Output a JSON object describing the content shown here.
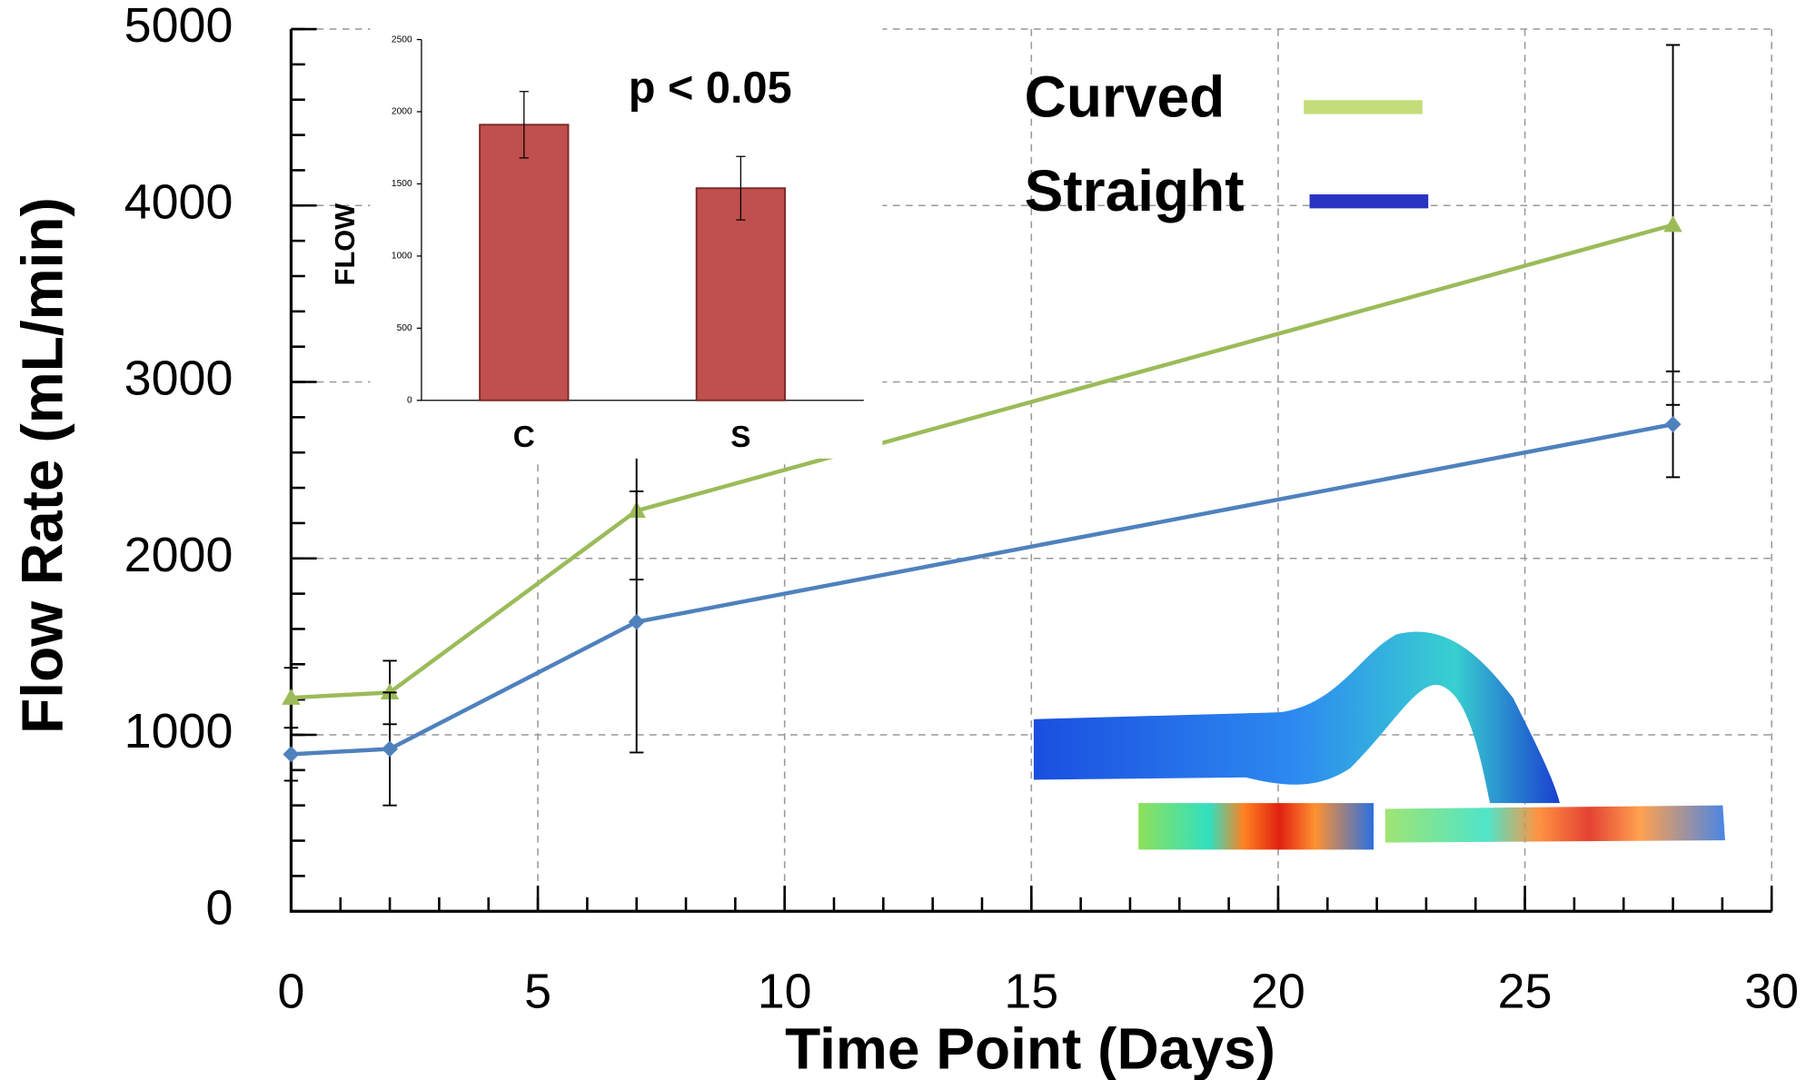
{
  "chart_data": [
    {
      "type": "line",
      "x_label": "Time Point (Days)",
      "y_label": "Flow Rate (mL/min)",
      "x": [
        0,
        2,
        7,
        28
      ],
      "series": [
        {
          "name": "Curved",
          "color": "#9bbb59",
          "legend_color": "#c4dd7a",
          "marker": "triangle",
          "values": [
            1210,
            1240,
            2270,
            3890
          ],
          "errors": [
            170,
            180,
            390,
            1020
          ]
        },
        {
          "name": "Straight",
          "color": "#4f81bd",
          "legend_color": "#2a33c2",
          "marker": "diamond",
          "values": [
            890,
            920,
            1640,
            2760
          ],
          "errors": [
            150,
            320,
            740,
            300
          ]
        }
      ],
      "xlim": [
        0,
        30
      ],
      "xticks": [
        0,
        5,
        10,
        15,
        20,
        25,
        30
      ],
      "ylim": [
        0,
        5000
      ],
      "yticks": [
        0,
        1000,
        2000,
        3000,
        4000,
        5000
      ],
      "grid": true
    },
    {
      "type": "bar",
      "y_label": "FLOW",
      "annotation": "p < 0.05",
      "color": "#c0504d",
      "categories": [
        "C",
        "S"
      ],
      "values": [
        1910,
        1470
      ],
      "errors": [
        230,
        220
      ],
      "ylim": [
        0,
        2500
      ],
      "yticks": [
        0,
        500,
        1000,
        1500,
        2000,
        2500
      ]
    }
  ]
}
